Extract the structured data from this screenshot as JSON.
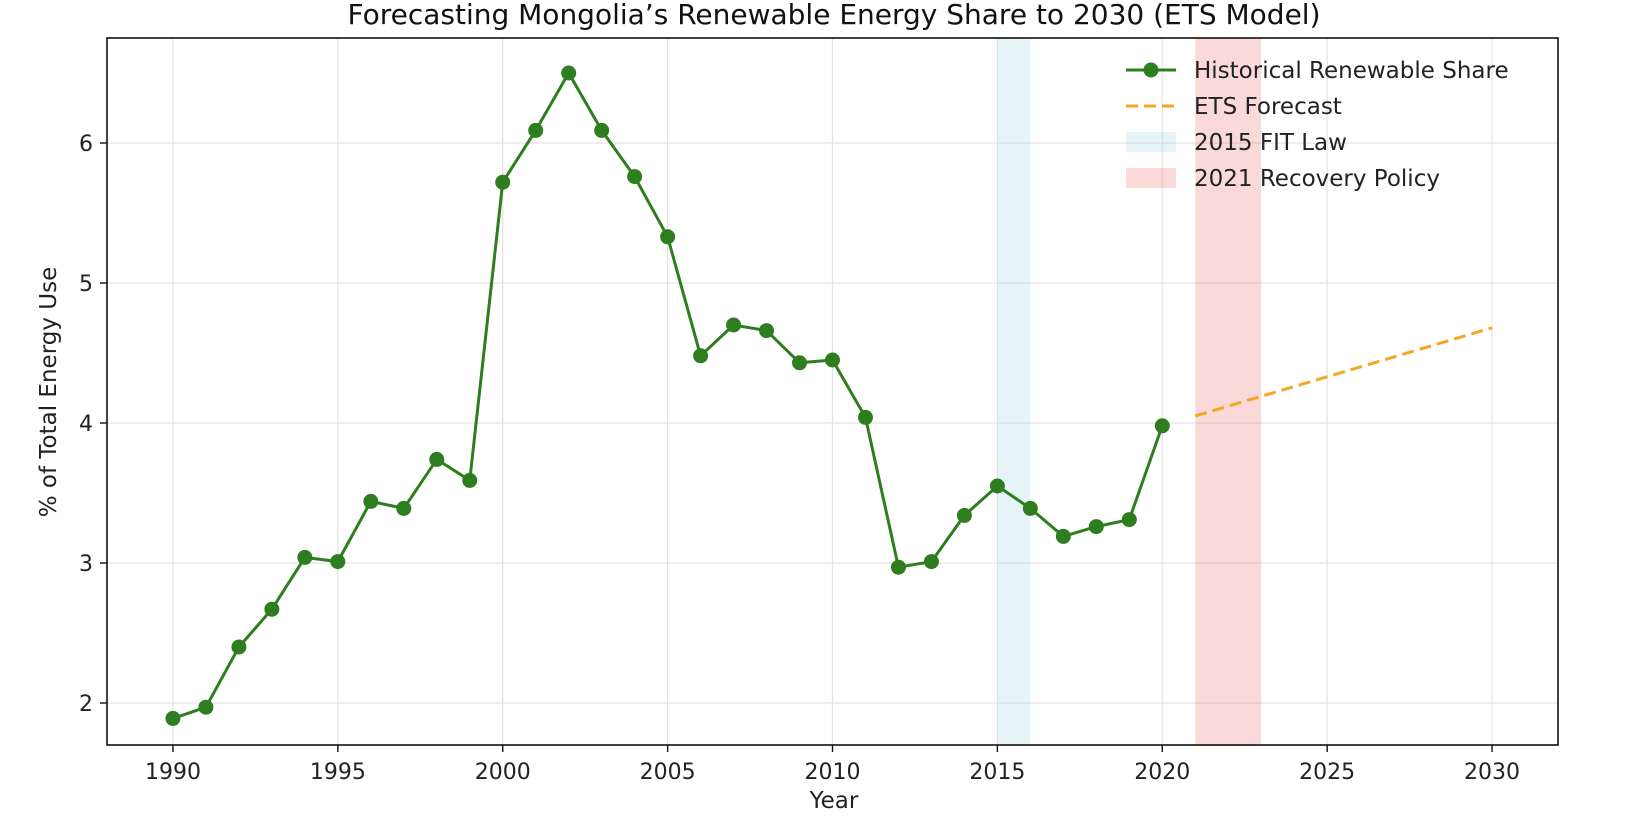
{
  "chart_data": {
    "type": "line",
    "title": "Forecasting Mongolia’s Renewable Energy Share to 2030 (ETS Model)",
    "xlabel": "Year",
    "ylabel": "% of Total Energy Use",
    "xlim": [
      1988,
      2032
    ],
    "ylim": [
      1.7,
      6.75
    ],
    "xticks": [
      1990,
      1995,
      2000,
      2005,
      2010,
      2015,
      2020,
      2025,
      2030
    ],
    "yticks": [
      2,
      3,
      4,
      5,
      6
    ],
    "grid": true,
    "legend_position": "top-right",
    "series": [
      {
        "name": "Historical Renewable Share",
        "style": "line-markers",
        "color": "#2e7d1f",
        "x": [
          1990,
          1991,
          1992,
          1993,
          1994,
          1995,
          1996,
          1997,
          1998,
          1999,
          2000,
          2001,
          2002,
          2003,
          2004,
          2005,
          2006,
          2007,
          2008,
          2009,
          2010,
          2011,
          2012,
          2013,
          2014,
          2015,
          2016,
          2017,
          2018,
          2019,
          2020
        ],
        "y": [
          1.89,
          1.97,
          2.4,
          2.67,
          3.04,
          3.01,
          3.44,
          3.39,
          3.74,
          3.59,
          5.72,
          6.09,
          6.5,
          6.09,
          5.76,
          5.33,
          4.48,
          4.7,
          4.66,
          4.43,
          4.45,
          4.04,
          2.97,
          3.01,
          3.34,
          3.55,
          3.39,
          3.19,
          3.26,
          3.31,
          3.98
        ]
      },
      {
        "name": "ETS Forecast",
        "style": "dashed",
        "color": "#f5a623",
        "x": [
          2021,
          2030
        ],
        "y": [
          4.05,
          4.68
        ]
      }
    ],
    "spans": [
      {
        "name": "2015 FIT Law",
        "x0": 2015,
        "x1": 2016,
        "color": "#add8e6",
        "opacity": 0.3
      },
      {
        "name": "2021 Recovery Policy",
        "x0": 2021,
        "x1": 2023,
        "color": "#f08080",
        "opacity": 0.3
      }
    ]
  }
}
